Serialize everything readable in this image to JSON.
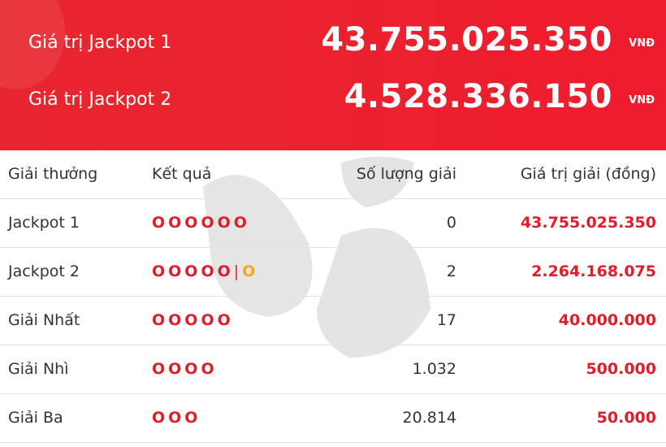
{
  "header": {
    "jackpots": [
      {
        "label": "Giá trị Jackpot 1",
        "value": "43.755.025.350",
        "unit": "VNĐ"
      },
      {
        "label": "Giá trị Jackpot 2",
        "value": "4.528.336.150",
        "unit": "VNĐ"
      }
    ]
  },
  "table": {
    "columns": [
      "Giải thưởng",
      "Kết quả",
      "Số lượng giải",
      "Giá trị giải (đồng)"
    ],
    "rows": [
      {
        "prize": "Jackpot 1",
        "result": "OOOOOO",
        "count": "0",
        "value": "43.755.025.350"
      },
      {
        "prize": "Jackpot 2",
        "result": "OOOOO",
        "separator": "|",
        "special": "O",
        "count": "2",
        "value": "2.264.168.075"
      },
      {
        "prize": "Giải Nhất",
        "result": "OOOOO",
        "count": "17",
        "value": "40.000.000"
      },
      {
        "prize": "Giải Nhì",
        "result": "OOOO",
        "count": "1.032",
        "value": "500.000"
      },
      {
        "prize": "Giải Ba",
        "result": "OOO",
        "count": "20.814",
        "value": "50.000"
      }
    ]
  }
}
